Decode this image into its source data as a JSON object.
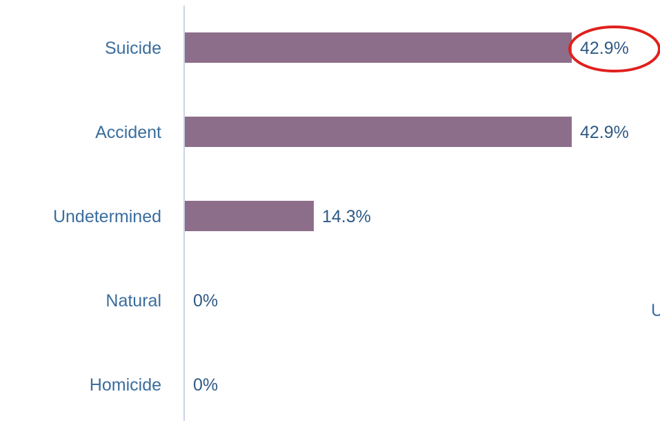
{
  "chart_data": {
    "type": "bar",
    "orientation": "horizontal",
    "categories": [
      "Suicide",
      "Accident",
      "Undetermined",
      "Natural",
      "Homicide"
    ],
    "values": [
      42.9,
      42.9,
      14.3,
      0,
      0
    ],
    "value_labels": [
      "42.9%",
      "42.9%",
      "14.3%",
      "0%",
      "0%"
    ],
    "xlim": [
      0,
      50
    ],
    "grid": false,
    "bar_color": "#8d6e8a",
    "highlight": {
      "category": "Suicide",
      "shape": "ellipse",
      "color": "#e0201e"
    }
  },
  "stray_text": "U"
}
